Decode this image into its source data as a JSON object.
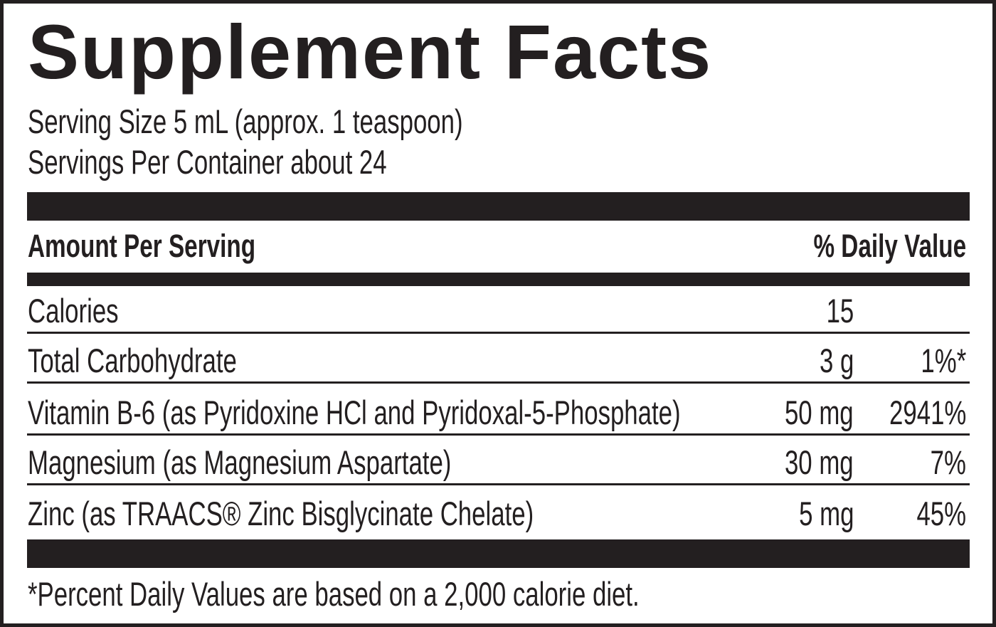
{
  "header": {
    "title": "Supplement Facts",
    "serving_size": "Serving Size 5 mL (approx. 1 teaspoon)",
    "servings_per_container": "Servings Per Container about 24"
  },
  "table": {
    "columns": [
      "Amount Per Serving",
      "% Daily Value"
    ],
    "rows": [
      {
        "name": "Calories",
        "amount": "15"
      },
      {
        "name": "Total Carbohydrate",
        "amount": "3 g",
        "daily_value": "1%*"
      },
      {
        "name": "Vitamin B-6 (as Pyridoxine HCl and Pyridoxal-5-Phosphate)",
        "amount": "50 mg",
        "daily_value": "2941%"
      },
      {
        "name": "Magnesium (as Magnesium Aspartate)",
        "amount": "30 mg",
        "daily_value": "7%"
      },
      {
        "name": "Zinc (as TRAACS® Zinc Bisglycinate Chelate)",
        "amount": "5 mg",
        "daily_value": "45%"
      }
    ]
  },
  "footnote": "*Percent Daily Values are based on a 2,000 calorie diet."
}
